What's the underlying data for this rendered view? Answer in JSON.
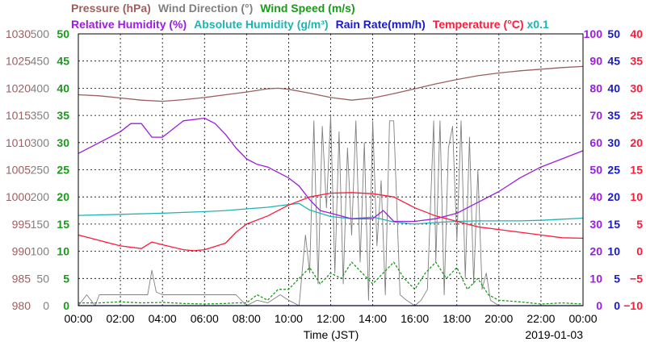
{
  "chart_data": {
    "type": "line",
    "date": "2019-01-03",
    "xlabel": "Time (JST)",
    "x_ticks": [
      "00:00",
      "02:00",
      "04:00",
      "06:00",
      "08:00",
      "10:00",
      "12:00",
      "14:00",
      "16:00",
      "18:00",
      "20:00",
      "22:00",
      "00:00"
    ],
    "grid": true,
    "header_row1": [
      {
        "text": "Pressure (hPa)",
        "color": "#9c5f5f"
      },
      {
        "text": "Wind Direction (°)",
        "color": "#808080"
      },
      {
        "text": "Wind Speed (m/s)",
        "color": "#1a9a1a"
      }
    ],
    "header_row2": [
      {
        "text": "Relative Humidity (%)",
        "color": "#9a1ee0"
      },
      {
        "text": "Absolute Humidity (g/m³)",
        "color": "#1fb3b3"
      },
      {
        "text": "Rain Rate(mm/h)",
        "color": "#1a1acc"
      },
      {
        "text": "Temperature (°C)",
        "color": "#ff1a3a"
      },
      {
        "text": "x0.1",
        "color": "#1fb3b3"
      }
    ],
    "axes": {
      "pressure": {
        "color": "#9c5f5f",
        "range": [
          980,
          1030
        ],
        "ticks": [
          "980",
          "985",
          "990",
          "995",
          "1000",
          "1005",
          "1010",
          "1015",
          "1020",
          "1025",
          "1030"
        ]
      },
      "wind_direction": {
        "color": "#808080",
        "range": [
          0,
          500
        ],
        "ticks": [
          "0",
          "50",
          "100",
          "150",
          "200",
          "250",
          "300",
          "350",
          "400",
          "450",
          "500"
        ]
      },
      "wind_speed": {
        "color": "#1a9a1a",
        "range": [
          0,
          50
        ],
        "ticks": [
          "0",
          "5",
          "10",
          "15",
          "20",
          "25",
          "30",
          "35",
          "40",
          "45",
          "50"
        ]
      },
      "relative_humidity": {
        "color": "#9a1ee0",
        "range": [
          0,
          100
        ],
        "ticks": [
          "0",
          "10",
          "20",
          "30",
          "40",
          "50",
          "60",
          "70",
          "80",
          "90",
          "100"
        ]
      },
      "rain_rate": {
        "color": "#1a1acc",
        "range": [
          0,
          50
        ],
        "ticks": [
          "0",
          "5",
          "10",
          "15",
          "20",
          "25",
          "30",
          "35",
          "40",
          "45",
          "50"
        ]
      },
      "temperature": {
        "color": "#ff1a3a",
        "range": [
          -10,
          40
        ],
        "ticks": [
          "−10",
          "−5",
          "0",
          "5",
          "10",
          "15",
          "20",
          "25",
          "30",
          "35",
          "40"
        ]
      }
    },
    "series": [
      {
        "name": "Pressure (hPa)",
        "axis": "pressure",
        "color": "#9c5f5f",
        "x": [
          0,
          1,
          2,
          3,
          4,
          5,
          6,
          7,
          8,
          9,
          9.5,
          10,
          11,
          12,
          13,
          14,
          15,
          16,
          17,
          18,
          19,
          20,
          21,
          22,
          23,
          24
        ],
        "y": [
          1018.8,
          1018.6,
          1018.2,
          1017.8,
          1017.6,
          1017.9,
          1018.3,
          1018.8,
          1019.3,
          1019.9,
          1020.0,
          1019.8,
          1019.1,
          1018.3,
          1017.8,
          1018.2,
          1019.0,
          1019.9,
          1020.8,
          1021.6,
          1022.3,
          1022.8,
          1023.2,
          1023.5,
          1023.8,
          1024.0
        ]
      },
      {
        "name": "Relative Humidity (%)",
        "axis": "relative_humidity",
        "color": "#9a1ee0",
        "x": [
          0,
          1,
          2,
          2.5,
          3,
          3.5,
          4,
          5,
          6,
          6.5,
          7,
          7.5,
          8,
          8.5,
          9,
          10,
          10.5,
          11,
          11.5,
          12,
          13,
          14,
          14.5,
          15,
          16,
          17,
          18,
          19,
          20,
          21,
          22,
          23,
          24
        ],
        "y": [
          56,
          60,
          64,
          67,
          67,
          62,
          62,
          68,
          69,
          67,
          63,
          58,
          54,
          52,
          51,
          47,
          44,
          39,
          35,
          34,
          32,
          32,
          35,
          31,
          31,
          32,
          34,
          38,
          42,
          47,
          51,
          54,
          57
        ]
      },
      {
        "name": "Absolute Humidity (g/m³)",
        "axis": "pressure",
        "color": "#1fb3b3",
        "x": [
          0,
          2,
          4,
          6,
          7,
          8,
          9,
          10,
          10.5,
          11,
          12,
          13,
          14,
          15,
          16,
          17,
          18,
          19,
          20,
          21,
          22,
          23,
          24
        ],
        "y": [
          996.6,
          996.8,
          997.0,
          997.3,
          997.5,
          997.8,
          998.1,
          998.6,
          998.8,
          997.6,
          996.4,
          996.0,
          996.3,
          995.4,
          995.0,
          995.3,
          995.5,
          995.6,
          995.6,
          995.6,
          995.7,
          995.9,
          996.1
        ]
      },
      {
        "name": "Temperature (°C)",
        "axis": "temperature",
        "color": "#ff1a3a",
        "x": [
          0,
          1,
          2,
          3,
          3.5,
          4,
          5,
          5.5,
          6,
          7,
          7.5,
          8,
          9,
          10,
          11,
          12,
          13,
          14,
          15,
          16,
          17,
          18,
          19,
          20,
          21,
          22,
          23,
          24
        ],
        "y": [
          3.0,
          2.0,
          1.0,
          0.5,
          1.7,
          1.2,
          0.3,
          0.1,
          0.3,
          1.5,
          3.5,
          5.0,
          6.5,
          8.5,
          10.0,
          10.7,
          10.8,
          10.6,
          10.0,
          8.0,
          6.5,
          5.5,
          4.5,
          4.0,
          3.5,
          3.0,
          2.5,
          2.4
        ]
      },
      {
        "name": "Wind Speed (m/s)",
        "axis": "wind_speed",
        "color": "#1a9a1a",
        "x": [
          0,
          1,
          2,
          3,
          4,
          5,
          6,
          7,
          7.5,
          8,
          8.5,
          9,
          9.5,
          10,
          10.5,
          11,
          11.5,
          12,
          12.5,
          13,
          13.5,
          14,
          14.5,
          15,
          15.5,
          16,
          16.5,
          17,
          17.5,
          18,
          18.5,
          19,
          19.5,
          20,
          21,
          22,
          23,
          24
        ],
        "y": [
          0.5,
          0.5,
          0.7,
          0.5,
          0.6,
          0.4,
          0.3,
          0.4,
          0.5,
          0.5,
          2,
          1,
          3,
          3,
          5,
          7,
          4,
          6,
          5,
          8,
          6,
          4,
          6,
          8,
          5,
          3,
          6,
          8,
          5,
          7,
          3,
          5,
          2,
          1,
          0.7,
          0.3,
          0.5,
          0.3
        ]
      },
      {
        "name": "Wind Direction (°)",
        "axis": "wind_direction",
        "color": "#808080",
        "x": [
          0,
          0.4,
          0.8,
          1,
          1.5,
          2,
          3,
          3.3,
          3.5,
          3.7,
          4,
          5,
          6,
          7,
          7.5,
          8,
          8.5,
          9,
          9.6,
          10,
          10.5,
          10.8,
          11,
          11.2,
          11.4,
          11.6,
          11.8,
          12,
          12.2,
          12.4,
          12.6,
          12.8,
          13,
          13.2,
          13.4,
          13.6,
          13.8,
          14,
          14.2,
          14.4,
          14.6,
          14.8,
          15,
          15.3,
          15.6,
          16,
          16.3,
          16.6,
          16.9,
          17,
          17.2,
          17.4,
          17.6,
          17.8,
          18,
          18.2,
          18.4,
          18.6,
          18.8,
          19,
          19.2,
          19.4,
          19.6,
          20,
          21,
          22,
          23,
          24
        ],
        "y": [
          0,
          20,
          0,
          20,
          20,
          20,
          20,
          20,
          65,
          25,
          20,
          20,
          20,
          20,
          20,
          0,
          10,
          5,
          20,
          10,
          0,
          130,
          60,
          340,
          40,
          330,
          180,
          350,
          60,
          320,
          40,
          290,
          130,
          340,
          80,
          300,
          10,
          340,
          110,
          230,
          20,
          340,
          340,
          20,
          10,
          0,
          10,
          30,
          340,
          80,
          340,
          20,
          290,
          330,
          120,
          340,
          50,
          310,
          40,
          250,
          30,
          60,
          10,
          0,
          0,
          0,
          0,
          0
        ]
      },
      {
        "name": "Rain Rate(mm/h)",
        "axis": "rain_rate",
        "color": "#1a1acc",
        "x": [
          0,
          24
        ],
        "y": [
          0,
          0
        ]
      }
    ]
  }
}
